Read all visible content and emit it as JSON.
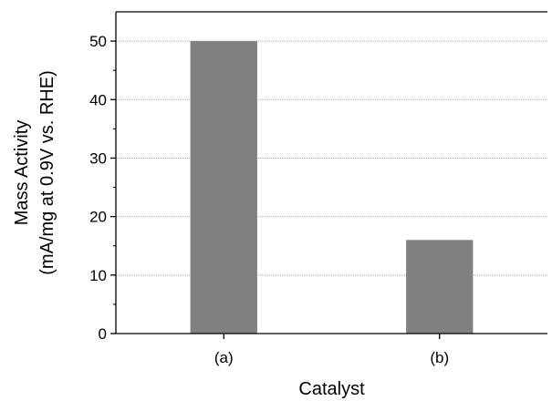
{
  "chart_data": {
    "type": "bar",
    "title": "",
    "xlabel": "Catalyst",
    "ylabel": [
      "Mass Activity",
      "(mA/mg at 0.9V vs. RHE)"
    ],
    "categories": [
      "(a)",
      "(b)"
    ],
    "values": [
      50,
      16
    ],
    "ylim": [
      0,
      55
    ],
    "yticks": [
      0,
      10,
      20,
      30,
      40,
      50
    ],
    "grid": true,
    "bar_color": "#808080",
    "grid_color": "#a9a9a9",
    "axis_color": "#000000"
  }
}
